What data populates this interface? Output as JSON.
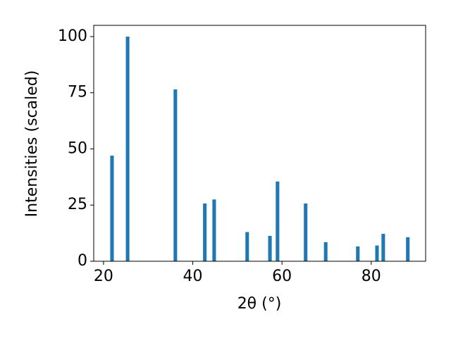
{
  "chart_data": {
    "type": "bar",
    "x": [
      21.9,
      25.4,
      36.1,
      42.7,
      44.8,
      52.2,
      57.3,
      59.0,
      65.3,
      69.8,
      77.0,
      81.3,
      82.7,
      88.2
    ],
    "values": [
      47,
      100,
      76.5,
      25.7,
      27.5,
      13,
      11.3,
      35.5,
      25.7,
      8.5,
      6.6,
      7,
      12.2,
      10.7
    ],
    "color": "#1f77b4",
    "xlabel": "2θ (°)",
    "ylabel": "Intensities (scaled)",
    "xlim": [
      17.8,
      92.2
    ],
    "xticks": [
      20,
      40,
      60,
      80
    ],
    "ylim": [
      0,
      105
    ],
    "yticks": [
      0,
      25,
      50,
      75,
      100
    ]
  }
}
